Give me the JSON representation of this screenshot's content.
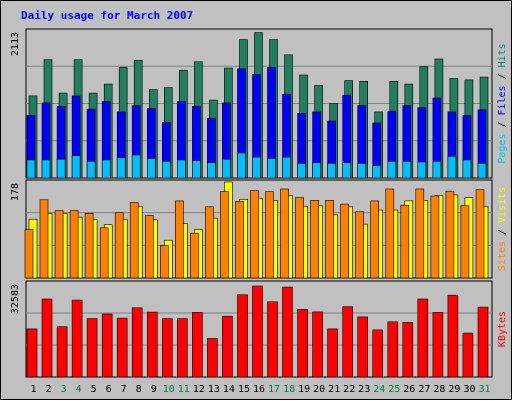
{
  "chart_data": [
    {
      "type": "bar",
      "title": "Daily usage for March 2007",
      "max_label": "2113",
      "ylim": [
        0,
        2113
      ],
      "categories": [
        "1",
        "2",
        "3",
        "4",
        "5",
        "6",
        "7",
        "8",
        "9",
        "10",
        "11",
        "12",
        "13",
        "14",
        "15",
        "16",
        "17",
        "18",
        "19",
        "20",
        "21",
        "22",
        "23",
        "24",
        "25",
        "26",
        "27",
        "28",
        "29",
        "30",
        "31"
      ],
      "weekend_days": [
        "3",
        "4",
        "10",
        "11",
        "17",
        "18",
        "24",
        "25",
        "31"
      ],
      "right_label": [
        {
          "text": "Pages",
          "color": "#00bfff"
        },
        {
          "text": " / ",
          "color": "#000000"
        },
        {
          "text": "Files",
          "color": "#0000ff"
        },
        {
          "text": " / ",
          "color": "#000000"
        },
        {
          "text": "Hits",
          "color": "#008080"
        }
      ],
      "series": [
        {
          "name": "Hits",
          "color": "#1f7f5f",
          "values": [
            1180,
            1700,
            1220,
            1700,
            1220,
            1350,
            1590,
            1690,
            1270,
            1300,
            1550,
            1670,
            1120,
            1580,
            1990,
            2090,
            1990,
            1770,
            1480,
            1330,
            1070,
            1400,
            1390,
            950,
            1390,
            1350,
            1600,
            1710,
            1430,
            1410,
            1450
          ]
        },
        {
          "name": "Files",
          "color": "#0000ff",
          "values": [
            900,
            1080,
            1030,
            1180,
            990,
            1100,
            950,
            1040,
            1000,
            800,
            1100,
            1030,
            860,
            1080,
            1570,
            1490,
            1590,
            1200,
            930,
            950,
            820,
            1190,
            1040,
            790,
            960,
            1040,
            1010,
            1150,
            950,
            900,
            980
          ]
        },
        {
          "name": "Pages",
          "color": "#00bfff",
          "values": [
            260,
            260,
            270,
            320,
            240,
            260,
            290,
            330,
            280,
            240,
            260,
            250,
            220,
            270,
            360,
            300,
            280,
            300,
            210,
            220,
            210,
            220,
            210,
            180,
            240,
            240,
            230,
            240,
            310,
            260,
            210
          ]
        }
      ]
    },
    {
      "type": "bar",
      "max_label": "178",
      "ylim": [
        0,
        178
      ],
      "right_label": [
        {
          "text": "Sites",
          "color": "#ff8000"
        },
        {
          "text": " / ",
          "color": "#000000"
        },
        {
          "text": "Visits",
          "color": "#ffff00"
        }
      ],
      "series": [
        {
          "name": "Visits",
          "color": "#ffff00",
          "values": [
            109,
            120,
            120,
            113,
            108,
            99,
            109,
            133,
            108,
            70,
            101,
            90,
            111,
            178,
            146,
            148,
            144,
            153,
            133,
            134,
            117,
            132,
            100,
            126,
            126,
            143,
            144,
            153,
            154,
            149,
            133
          ]
        },
        {
          "name": "Sites",
          "color": "#ff8000",
          "values": [
            90,
            145,
            125,
            125,
            120,
            93,
            121,
            140,
            116,
            60,
            143,
            83,
            132,
            160,
            142,
            162,
            160,
            165,
            149,
            144,
            144,
            137,
            123,
            143,
            165,
            135,
            165,
            152,
            161,
            134,
            164
          ]
        }
      ]
    },
    {
      "type": "bar",
      "max_label": "32583",
      "ylim": [
        0,
        32583
      ],
      "right_label": [
        {
          "text": "KBytes",
          "color": "#ff0000"
        }
      ],
      "series": [
        {
          "name": "KBytes",
          "color": "#ff0000",
          "values": [
            16660,
            27040,
            17450,
            26640,
            20230,
            21830,
            20420,
            23980,
            22510,
            20250,
            20230,
            22400,
            13340,
            21080,
            28480,
            31550,
            26080,
            31160,
            23470,
            22550,
            16660,
            24380,
            20840,
            16320,
            19130,
            18970,
            27040,
            22400,
            28350,
            15210,
            24220
          ]
        }
      ]
    }
  ]
}
